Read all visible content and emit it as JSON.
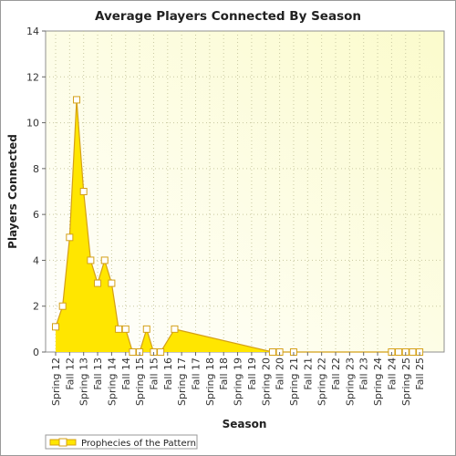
{
  "chart_data": {
    "type": "area",
    "title": "Average Players Connected By Season",
    "xlabel": "Season",
    "ylabel": "Players Connected",
    "ylim": [
      0,
      14
    ],
    "yticks": [
      0,
      2,
      4,
      6,
      8,
      10,
      12,
      14
    ],
    "grid": true,
    "legend_position": "bottom-left",
    "categories": [
      "Spring 12",
      "Fall 12",
      "Spring 13",
      "Fall 13",
      "Spring 14",
      "Fall 14",
      "Spring 15",
      "Fall 15",
      "Fall 16",
      "Spring 17",
      "Fall 17",
      "Spring 18",
      "Fall 18",
      "Spring 19",
      "Fall 19",
      "Spring 20",
      "Fall 20",
      "Spring 21",
      "Fall 21",
      "Spring 22",
      "Fall 22",
      "Spring 23",
      "Fall 23",
      "Spring 24",
      "Fall 24",
      "Spring 25",
      "Fall 25"
    ],
    "series": [
      {
        "name": "Prophecies of the Pattern",
        "color": "#ffe600",
        "line_color": "#d4a017",
        "points": [
          {
            "x": 0.0,
            "y": 1.1
          },
          {
            "x": 0.5,
            "y": 2.0
          },
          {
            "x": 1.0,
            "y": 5.0
          },
          {
            "x": 1.5,
            "y": 11.0
          },
          {
            "x": 2.0,
            "y": 7.0
          },
          {
            "x": 2.5,
            "y": 4.0
          },
          {
            "x": 3.0,
            "y": 3.0
          },
          {
            "x": 3.5,
            "y": 4.0
          },
          {
            "x": 4.0,
            "y": 3.0
          },
          {
            "x": 4.5,
            "y": 1.0
          },
          {
            "x": 5.0,
            "y": 1.0
          },
          {
            "x": 5.5,
            "y": 0
          },
          {
            "x": 6.0,
            "y": 0
          },
          {
            "x": 6.5,
            "y": 1.0
          },
          {
            "x": 7.0,
            "y": 0
          },
          {
            "x": 7.5,
            "y": 0
          },
          {
            "x": 8.5,
            "y": 1.0
          },
          {
            "x": 15.5,
            "y": 0
          },
          {
            "x": 16.0,
            "y": 0
          },
          {
            "x": 17.0,
            "y": 0
          },
          {
            "x": 24.0,
            "y": 0
          },
          {
            "x": 24.5,
            "y": 0
          },
          {
            "x": 25.0,
            "y": 0
          },
          {
            "x": 25.5,
            "y": 0
          },
          {
            "x": 26.0,
            "y": 0
          }
        ]
      }
    ]
  }
}
